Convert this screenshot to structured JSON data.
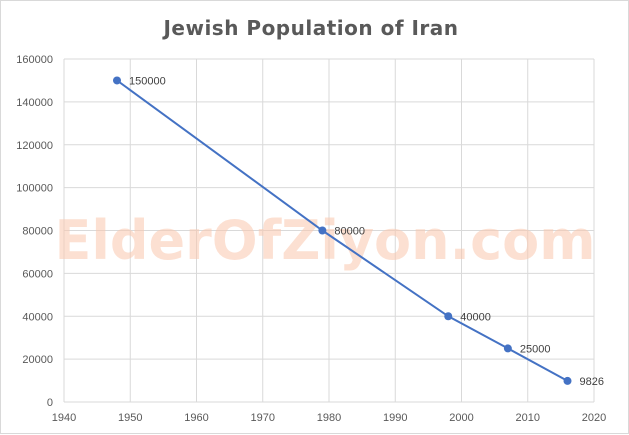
{
  "chart_data": {
    "type": "scatter",
    "title": "Jewish Population of Iran",
    "xlabel": "",
    "ylabel": "",
    "x": [
      1948,
      1979,
      1998,
      2007,
      2016
    ],
    "series": [
      {
        "values": [
          150000,
          80000,
          40000,
          25000,
          9826
        ],
        "color": "#4472c4"
      }
    ],
    "data_labels": [
      "150000",
      "80000",
      "40000",
      "25000",
      "9826"
    ],
    "xlim": [
      1940,
      2020
    ],
    "ylim": [
      0,
      160000
    ],
    "x_ticks": [
      1940,
      1950,
      1960,
      1970,
      1980,
      1990,
      2000,
      2010,
      2020
    ],
    "y_ticks": [
      0,
      20000,
      40000,
      60000,
      80000,
      100000,
      120000,
      140000,
      160000
    ],
    "grid": true,
    "legend": "none",
    "lines_connect_points": true
  },
  "watermark": "ElderOfZiyon.com",
  "colors": {
    "line": "#4472c4",
    "grid": "#d9d9d9",
    "text": "#595959",
    "watermark": "#f9c6ad"
  }
}
